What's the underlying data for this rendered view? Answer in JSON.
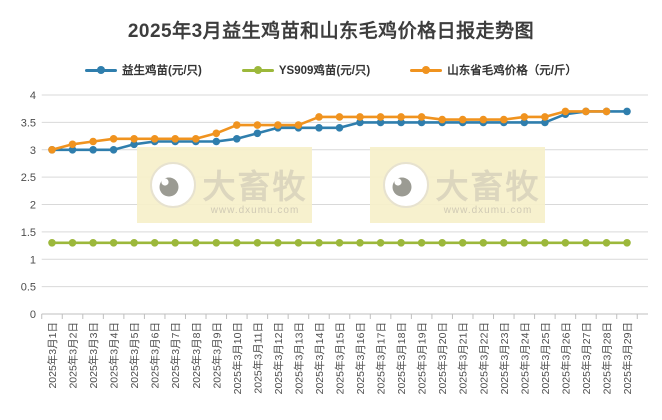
{
  "title": "2025年3月益生鸡苗和山东毛鸡价格日报走势图",
  "watermark": {
    "brand": "大畜牧",
    "url": "www.dxumu.com",
    "box_color": "#F6F0CA",
    "text_color": "#DCD6BE",
    "url_color": "#D0CAB5"
  },
  "colors": {
    "grid": "#D9D9D9",
    "axis": "#BFBFBF",
    "tick_label": "#4D4D4D",
    "title": "#3D3D3D"
  },
  "chart_data": {
    "type": "line",
    "title": "2025年3月益生鸡苗和山东毛鸡价格日报走势图",
    "categories": [
      "2025年3月1日",
      "2025年3月2日",
      "2025年3月3日",
      "2025年3月4日",
      "2025年3月5日",
      "2025年3月6日",
      "2025年3月7日",
      "2025年3月8日",
      "2025年3月9日",
      "2025年3月10日",
      "2025年3月11日",
      "2025年3月12日",
      "2025年3月13日",
      "2025年3月14日",
      "2025年3月15日",
      "2025年3月16日",
      "2025年3月17日",
      "2025年3月18日",
      "2025年3月19日",
      "2025年3月20日",
      "2025年3月21日",
      "2025年3月22日",
      "2025年3月23日",
      "2025年3月24日",
      "2025年3月25日",
      "2025年3月26日",
      "2025年3月27日",
      "2025年3月28日",
      "2025年3月29日"
    ],
    "series": [
      {
        "name": "益生鸡苗(元/只)",
        "color": "#2F7EAD",
        "values": [
          3.0,
          3.0,
          3.0,
          3.0,
          3.1,
          3.15,
          3.15,
          3.15,
          3.15,
          3.2,
          3.3,
          3.4,
          3.4,
          3.4,
          3.4,
          3.5,
          3.5,
          3.5,
          3.5,
          3.5,
          3.5,
          3.5,
          3.5,
          3.5,
          3.5,
          3.65,
          3.7,
          3.7,
          3.7
        ]
      },
      {
        "name": "YS909鸡苗(元/只)",
        "color": "#9CB83B",
        "values": [
          1.3,
          1.3,
          1.3,
          1.3,
          1.3,
          1.3,
          1.3,
          1.3,
          1.3,
          1.3,
          1.3,
          1.3,
          1.3,
          1.3,
          1.3,
          1.3,
          1.3,
          1.3,
          1.3,
          1.3,
          1.3,
          1.3,
          1.3,
          1.3,
          1.3,
          1.3,
          1.3,
          1.3,
          1.3
        ]
      },
      {
        "name": "山东省毛鸡价格（元/斤）",
        "color": "#F0931F",
        "values": [
          3.0,
          3.1,
          3.15,
          3.2,
          3.2,
          3.2,
          3.2,
          3.2,
          3.3,
          3.45,
          3.45,
          3.45,
          3.45,
          3.6,
          3.6,
          3.6,
          3.6,
          3.6,
          3.6,
          3.55,
          3.55,
          3.55,
          3.55,
          3.6,
          3.6,
          3.7,
          3.7,
          3.7,
          null
        ]
      }
    ],
    "xlabel": "",
    "ylabel": "",
    "ylim": [
      0,
      4
    ],
    "ytick_step": 0.5,
    "yticks": [
      "0",
      "0.5",
      "1",
      "1.5",
      "2",
      "2.5",
      "3",
      "3.5",
      "4"
    ],
    "grid": true,
    "legend_position": "top"
  }
}
